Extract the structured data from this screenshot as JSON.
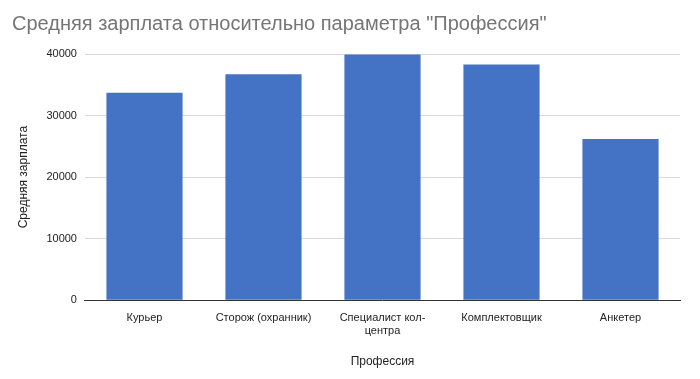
{
  "chart_data": {
    "type": "bar",
    "title": "Средняя зарплата относительно параметра \"Профессия\"",
    "x_label": "Профессия",
    "y_label": "Средняя зарплата",
    "categories": [
      "Курьер",
      "Сторож (охранник)",
      "Специалист кол-центра",
      "Комплектовщик",
      "Анкетер"
    ],
    "values": [
      33700,
      36700,
      39900,
      38300,
      26200
    ],
    "color": "#4472c4",
    "ylim": [
      0,
      40000
    ],
    "yticks": [
      0,
      10000,
      20000,
      30000,
      40000
    ],
    "grid": true
  }
}
